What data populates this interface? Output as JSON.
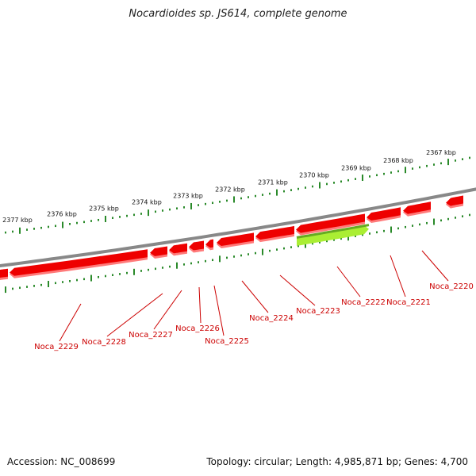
{
  "title": "Nocardioides sp. JS614, complete genome",
  "footer": {
    "accession": "Accession: NC_008699",
    "topology": "Topology: circular; Length: 4,985,871 bp; Genes: 4,700"
  },
  "colors": {
    "gene": "#ee0000",
    "gene_shadow": "#ff7a7a",
    "highlight": "#aaee33",
    "highlight_dark": "#66aa22",
    "backbone": "#888888",
    "ruler": "#2a8a2a",
    "label": "#cc0000"
  },
  "ruler_labels": [
    "2377 kbp",
    "2376 kbp",
    "2375 kbp",
    "2374 kbp",
    "2373 kbp",
    "2372 kbp",
    "2371 kbp",
    "2370 kbp",
    "2369 kbp",
    "2368 kbp",
    "2367 kbp"
  ],
  "genes": [
    {
      "label": "Noca_2229"
    },
    {
      "label": "Noca_2228"
    },
    {
      "label": "Noca_2227"
    },
    {
      "label": "Noca_2226"
    },
    {
      "label": "Noca_2225"
    },
    {
      "label": "Noca_2224"
    },
    {
      "label": "Noca_2223"
    },
    {
      "label": "Noca_2222"
    },
    {
      "label": "Noca_2221"
    },
    {
      "label": "Noca_2220"
    }
  ]
}
